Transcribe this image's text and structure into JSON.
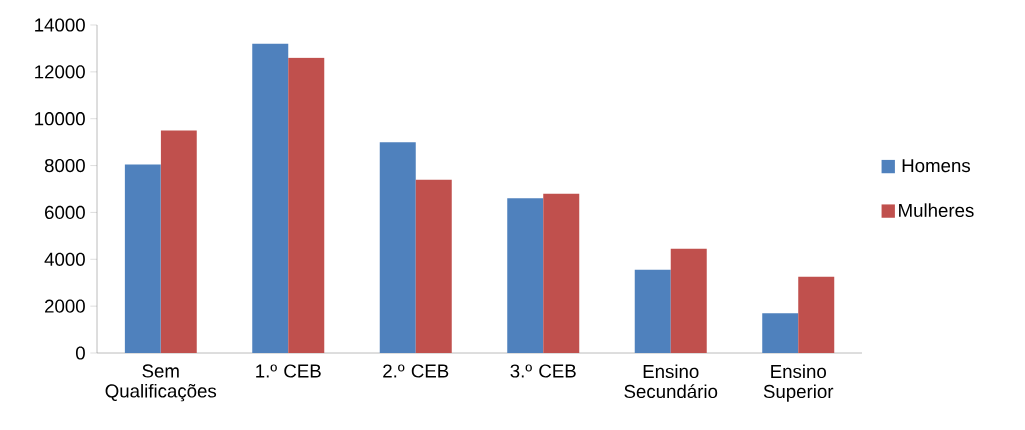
{
  "chart_data": {
    "type": "bar",
    "categories": [
      "Sem Qualificações",
      "1.º CEB",
      "2.º CEB",
      "3.º CEB",
      "Ensino Secundário",
      "Ensino Superior"
    ],
    "series": [
      {
        "name": "Homens",
        "color": "#4f81bd",
        "values": [
          8050,
          13200,
          9000,
          6600,
          3550,
          1700
        ]
      },
      {
        "name": "Mulheres",
        "color": "#c0504d",
        "values": [
          9500,
          12600,
          7400,
          6800,
          4450,
          3250
        ]
      }
    ],
    "ylim": [
      0,
      14000
    ],
    "yticks": [
      0,
      2000,
      4000,
      6000,
      8000,
      10000,
      12000,
      14000
    ],
    "legend": "right"
  }
}
